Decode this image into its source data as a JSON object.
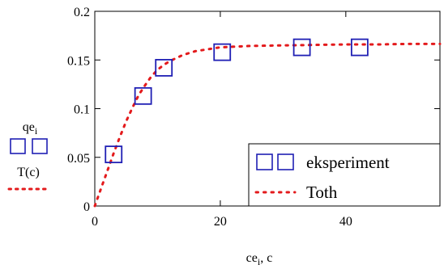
{
  "chart_data": {
    "type": "scatter",
    "xlim": [
      0,
      55
    ],
    "ylim": [
      0,
      0.2
    ],
    "x_ticks": [
      {
        "value": 0,
        "label": "0"
      },
      {
        "value": 20,
        "label": "20"
      },
      {
        "value": 40,
        "label": "40"
      }
    ],
    "y_ticks": [
      {
        "value": 0,
        "label": "0"
      },
      {
        "value": 0.05,
        "label": "0.05"
      },
      {
        "value": 0.1,
        "label": "0.1"
      },
      {
        "value": 0.15,
        "label": "0.15"
      },
      {
        "value": 0.2,
        "label": "0.2"
      }
    ],
    "xlabel": {
      "base": "ce",
      "sub": "i",
      "rest": ", c"
    },
    "ylabel": [
      {
        "base": "qe",
        "sub": "i"
      },
      {
        "base": "T(c)",
        "sub": ""
      }
    ],
    "grid": false,
    "legend_position": "lower-right",
    "series": [
      {
        "name": "eksperiment",
        "kind": "markers",
        "marker": "square",
        "color": "#1f1fb4",
        "points": [
          {
            "x": 3.0,
            "y": 0.053
          },
          {
            "x": 7.7,
            "y": 0.113
          },
          {
            "x": 11.0,
            "y": 0.142
          },
          {
            "x": 20.3,
            "y": 0.158
          },
          {
            "x": 33.0,
            "y": 0.163
          },
          {
            "x": 42.2,
            "y": 0.163
          }
        ]
      },
      {
        "name": "Toth",
        "kind": "curve",
        "style": "dotted",
        "color": "#e31a1c",
        "points": [
          {
            "x": 0,
            "y": 0
          },
          {
            "x": 1,
            "y": 0.018
          },
          {
            "x": 2,
            "y": 0.036
          },
          {
            "x": 3,
            "y": 0.054
          },
          {
            "x": 4,
            "y": 0.071
          },
          {
            "x": 5,
            "y": 0.087
          },
          {
            "x": 6,
            "y": 0.101
          },
          {
            "x": 7,
            "y": 0.114
          },
          {
            "x": 8,
            "y": 0.124
          },
          {
            "x": 9,
            "y": 0.133
          },
          {
            "x": 10,
            "y": 0.14
          },
          {
            "x": 11,
            "y": 0.145
          },
          {
            "x": 12,
            "y": 0.149
          },
          {
            "x": 14,
            "y": 0.155
          },
          {
            "x": 16,
            "y": 0.159
          },
          {
            "x": 18,
            "y": 0.161
          },
          {
            "x": 20,
            "y": 0.163
          },
          {
            "x": 25,
            "y": 0.1645
          },
          {
            "x": 30,
            "y": 0.165
          },
          {
            "x": 35,
            "y": 0.1655
          },
          {
            "x": 40,
            "y": 0.166
          },
          {
            "x": 45,
            "y": 0.166
          },
          {
            "x": 50,
            "y": 0.1665
          },
          {
            "x": 55,
            "y": 0.1665
          }
        ]
      }
    ]
  }
}
